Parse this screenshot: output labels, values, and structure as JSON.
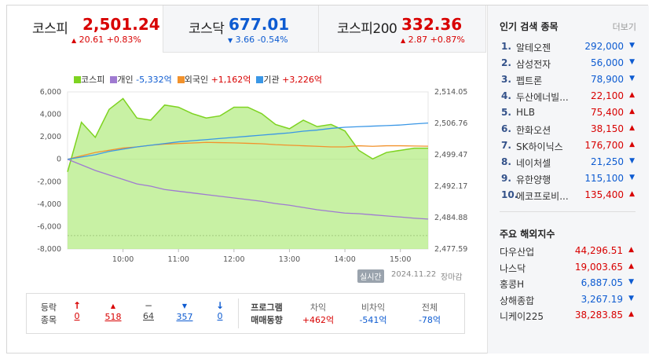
{
  "tabs": [
    {
      "name": "코스피",
      "value": "2,501.24",
      "dir": "up",
      "arrow": "▲",
      "change": "20.61 +0.83%"
    },
    {
      "name": "코스닥",
      "value": "677.01",
      "dir": "down",
      "arrow": "▼",
      "change": "3.66 -0.54%"
    },
    {
      "name": "코스피200",
      "value": "332.36",
      "dir": "up",
      "arrow": "▲",
      "change": "2.87 +0.87%"
    }
  ],
  "legend": [
    {
      "label": "코스피",
      "value": "",
      "color": "#7ed321"
    },
    {
      "label": "개인",
      "value": "-5,332억",
      "color": "#9f7ad1"
    },
    {
      "label": "외국인",
      "value": "+1,162억",
      "color": "#f2922c"
    },
    {
      "label": "기관",
      "value": "+3,226억",
      "color": "#3a97e6"
    }
  ],
  "chart_data": {
    "type": "line",
    "x_ticks": [
      "10:00",
      "11:00",
      "12:00",
      "13:00",
      "14:00",
      "15:00"
    ],
    "y_left_ticks": [
      "6,000",
      "4,000",
      "2,000",
      "0",
      "-2,000",
      "-4,000",
      "-6,000",
      "-8,000"
    ],
    "y_right_ticks": [
      "2,514.05",
      "2,506.76",
      "2,499.47",
      "2,492.17",
      "2,484.88",
      "2,477.59"
    ],
    "x_range": [
      "09:00",
      "15:30"
    ],
    "ylim_left": [
      -8000,
      6000
    ],
    "ylim_right": [
      2477.59,
      2514.05
    ],
    "time_min": [
      0,
      15,
      30,
      45,
      60,
      75,
      90,
      105,
      120,
      135,
      150,
      165,
      180,
      195,
      210,
      225,
      240,
      255,
      270,
      285,
      300,
      315,
      330,
      345,
      360,
      375,
      390
    ],
    "series": [
      {
        "name": "코스피",
        "axis": "right",
        "values": [
          2495.5,
          2507.0,
          2503.5,
          2510.0,
          2512.5,
          2508.0,
          2507.5,
          2511.0,
          2510.5,
          2509.0,
          2508.0,
          2508.5,
          2510.5,
          2510.5,
          2509.0,
          2506.5,
          2505.5,
          2507.5,
          2506.0,
          2506.5,
          2505.0,
          2500.5,
          2498.5,
          2500.0,
          2500.5,
          2501.0,
          2501.0
        ]
      },
      {
        "name": "개인",
        "axis": "left",
        "values": [
          0,
          -500,
          -1000,
          -1400,
          -1800,
          -2200,
          -2400,
          -2700,
          -2850,
          -3000,
          -3150,
          -3300,
          -3450,
          -3600,
          -3750,
          -3950,
          -4100,
          -4300,
          -4500,
          -4650,
          -4800,
          -4850,
          -4950,
          -5050,
          -5150,
          -5250,
          -5332
        ]
      },
      {
        "name": "외국인",
        "axis": "left",
        "values": [
          0,
          300,
          600,
          800,
          1000,
          1100,
          1250,
          1350,
          1400,
          1450,
          1500,
          1480,
          1460,
          1420,
          1380,
          1300,
          1250,
          1200,
          1150,
          1100,
          1100,
          1200,
          1150,
          1200,
          1200,
          1180,
          1162
        ]
      },
      {
        "name": "기관",
        "axis": "left",
        "values": [
          0,
          200,
          400,
          700,
          900,
          1100,
          1250,
          1400,
          1550,
          1650,
          1750,
          1850,
          1950,
          2050,
          2150,
          2250,
          2350,
          2500,
          2600,
          2750,
          2850,
          2900,
          2950,
          3000,
          3050,
          3150,
          3226
        ]
      }
    ],
    "dashed_line_value": -6800
  },
  "timebar": {
    "badge": "실시간",
    "date": "2024.11.22",
    "status": "장마감"
  },
  "stats": {
    "row_label_1": "등락",
    "row_label_2": "종목",
    "arrows": [
      "↑",
      "▲",
      "−",
      "▼",
      "↓"
    ],
    "counts": [
      "0",
      "518",
      "64",
      "357",
      "0"
    ],
    "program_label_1": "프로그램",
    "program_label_2": "매매동향",
    "headers": [
      "차익",
      "비차익",
      "전체"
    ],
    "values": [
      "+462억",
      "-541억",
      "-78억"
    ]
  },
  "popular": {
    "title": "인기 검색 종목",
    "more": "더보기",
    "items": [
      {
        "rank": "1.",
        "name": "알테오젠",
        "price": "292,000",
        "dir": "down"
      },
      {
        "rank": "2.",
        "name": "삼성전자",
        "price": "56,000",
        "dir": "down"
      },
      {
        "rank": "3.",
        "name": "펩트론",
        "price": "78,900",
        "dir": "down"
      },
      {
        "rank": "4.",
        "name": "두산에너빌...",
        "price": "22,100",
        "dir": "up"
      },
      {
        "rank": "5.",
        "name": "HLB",
        "price": "75,400",
        "dir": "up"
      },
      {
        "rank": "6.",
        "name": "한화오션",
        "price": "38,150",
        "dir": "up"
      },
      {
        "rank": "7.",
        "name": "SK하이닉스",
        "price": "176,700",
        "dir": "up"
      },
      {
        "rank": "8.",
        "name": "네이처셀",
        "price": "21,250",
        "dir": "down"
      },
      {
        "rank": "9.",
        "name": "유한양행",
        "price": "115,100",
        "dir": "down"
      },
      {
        "rank": "10.",
        "name": "에코프로비...",
        "price": "135,400",
        "dir": "up"
      }
    ]
  },
  "world": {
    "title": "주요 해외지수",
    "items": [
      {
        "name": "다우산업",
        "price": "44,296.51",
        "dir": "up"
      },
      {
        "name": "나스닥",
        "price": "19,003.65",
        "dir": "up"
      },
      {
        "name": "홍콩H",
        "price": "6,887.05",
        "dir": "down"
      },
      {
        "name": "상해종합",
        "price": "3,267.19",
        "dir": "down"
      },
      {
        "name": "니케이225",
        "price": "38,283.85",
        "dir": "up"
      }
    ]
  },
  "colors": {
    "up": "#d80000",
    "down": "#0d5bd1",
    "kospi_fill": "#b5ec86",
    "kospi_line": "#7ed321"
  }
}
